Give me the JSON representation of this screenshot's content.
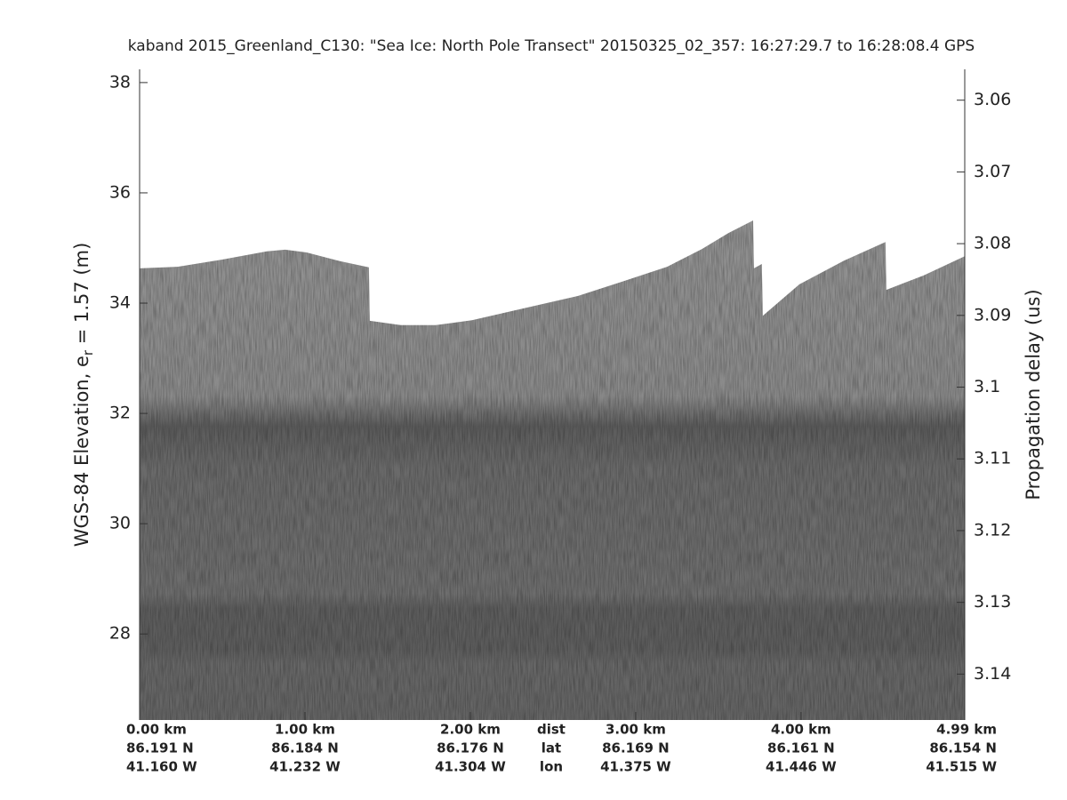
{
  "chart_data": {
    "type": "area",
    "title": "kaband 2015_Greenland_C130: \"Sea Ice: North Pole Transect\"  20150325_02_357: 16:27:29.7 to 16:28:08.4 GPS",
    "ylabel": "WGS-84 Elevation, e",
    "ylabel_sub": "r",
    "ylabel_end": " = 1.57 (m)",
    "y2label": "Propagation delay (us)",
    "x": [
      0,
      0.23,
      0.5,
      0.77,
      0.88,
      1.01,
      1.2,
      1.387,
      1.392,
      1.58,
      1.79,
      2.01,
      2.27,
      2.65,
      2.92,
      3.19,
      3.4,
      3.56,
      3.71,
      3.715,
      3.763,
      3.769,
      3.99,
      4.26,
      4.511,
      4.516,
      4.74,
      4.99
    ],
    "values": [
      34.63,
      34.66,
      34.79,
      34.94,
      34.97,
      34.92,
      34.77,
      34.65,
      33.68,
      33.6,
      33.6,
      33.69,
      33.87,
      34.13,
      34.39,
      34.66,
      34.98,
      35.27,
      35.5,
      34.63,
      34.71,
      33.77,
      34.34,
      34.77,
      35.11,
      34.24,
      34.5,
      34.85
    ],
    "xlim": [
      0,
      4.99
    ],
    "xticks": [
      {
        "value": 0,
        "label": "0.00 km"
      },
      {
        "value": 1,
        "label": "1.00 km"
      },
      {
        "value": 2,
        "label": "2.00 km"
      },
      {
        "value": 3,
        "label": "3.00 km"
      },
      {
        "value": 4,
        "label": "4.00 km"
      },
      {
        "value": 4.99,
        "label": "4.99 km"
      }
    ],
    "lat_labels": [
      "86.191 N",
      "86.184 N",
      "86.176 N",
      "86.169 N",
      "86.161 N",
      "86.154 N"
    ],
    "lon_labels": [
      "41.160 W",
      "41.232 W",
      "41.304 W",
      "41.375 W",
      "41.446 W",
      "41.515 W"
    ],
    "row_labels": [
      "dist",
      "lat",
      "lon"
    ],
    "ylim": [
      26.44,
      38.24
    ],
    "yticks": [
      28,
      30,
      32,
      34,
      36,
      38
    ],
    "y2lim": [
      3.1464,
      3.0557
    ],
    "y2ticks": [
      3.06,
      3.07,
      3.08,
      3.09,
      3.1,
      3.11,
      3.12,
      3.13,
      3.14
    ]
  }
}
